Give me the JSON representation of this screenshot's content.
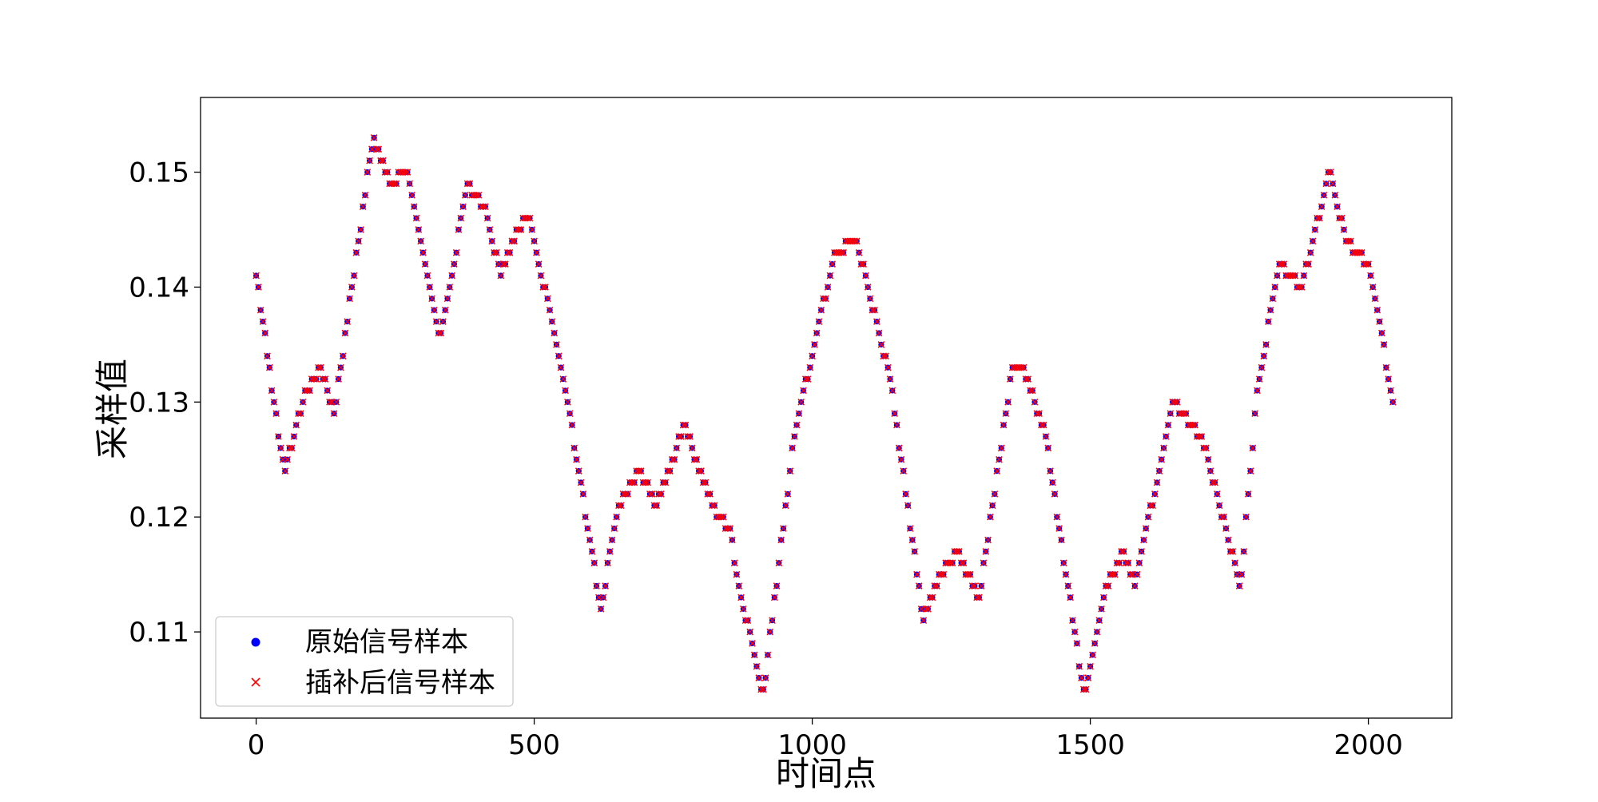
{
  "chart_data": {
    "type": "scatter",
    "title": "",
    "xlabel": "时间点",
    "ylabel": "采样值",
    "xlim": [
      -100,
      2150
    ],
    "ylim": [
      0.1025,
      0.1565
    ],
    "x_ticks": [
      0,
      500,
      1000,
      1500,
      2000
    ],
    "x_tick_labels": [
      "0",
      "500",
      "1000",
      "1500",
      "2000"
    ],
    "y_ticks": [
      0.11,
      0.12,
      0.13,
      0.14,
      0.15
    ],
    "y_tick_labels": [
      "0.11",
      "0.12",
      "0.13",
      "0.14",
      "0.15"
    ],
    "grid": false,
    "legend_position": "lower-left",
    "sample_step": 4,
    "series": [
      {
        "name": "原始信号样本",
        "marker": "dot",
        "color": "#0000ff"
      },
      {
        "name": "插补后信号样本",
        "marker": "x",
        "color": "#ff0000"
      }
    ],
    "signal_keypoints": {
      "x": [
        0,
        50,
        90,
        115,
        140,
        210,
        240,
        270,
        330,
        380,
        410,
        440,
        470,
        490,
        550,
        620,
        650,
        690,
        720,
        770,
        820,
        850,
        910,
        970,
        1000,
        1040,
        1080,
        1140,
        1200,
        1230,
        1260,
        1300,
        1360,
        1380,
        1420,
        1490,
        1530,
        1560,
        1580,
        1610,
        1650,
        1700,
        1770,
        1800,
        1840,
        1880,
        1930,
        1960,
        2000,
        2045
      ],
      "y": [
        0.141,
        0.124,
        0.131,
        0.133,
        0.129,
        0.153,
        0.149,
        0.15,
        0.135,
        0.149,
        0.147,
        0.141,
        0.145,
        0.146,
        0.133,
        0.112,
        0.121,
        0.124,
        0.121,
        0.128,
        0.121,
        0.119,
        0.104,
        0.128,
        0.134,
        0.143,
        0.144,
        0.132,
        0.111,
        0.115,
        0.117,
        0.113,
        0.133,
        0.133,
        0.127,
        0.104,
        0.114,
        0.117,
        0.114,
        0.121,
        0.13,
        0.127,
        0.114,
        0.131,
        0.142,
        0.14,
        0.15,
        0.144,
        0.142,
        0.13
      ]
    }
  }
}
